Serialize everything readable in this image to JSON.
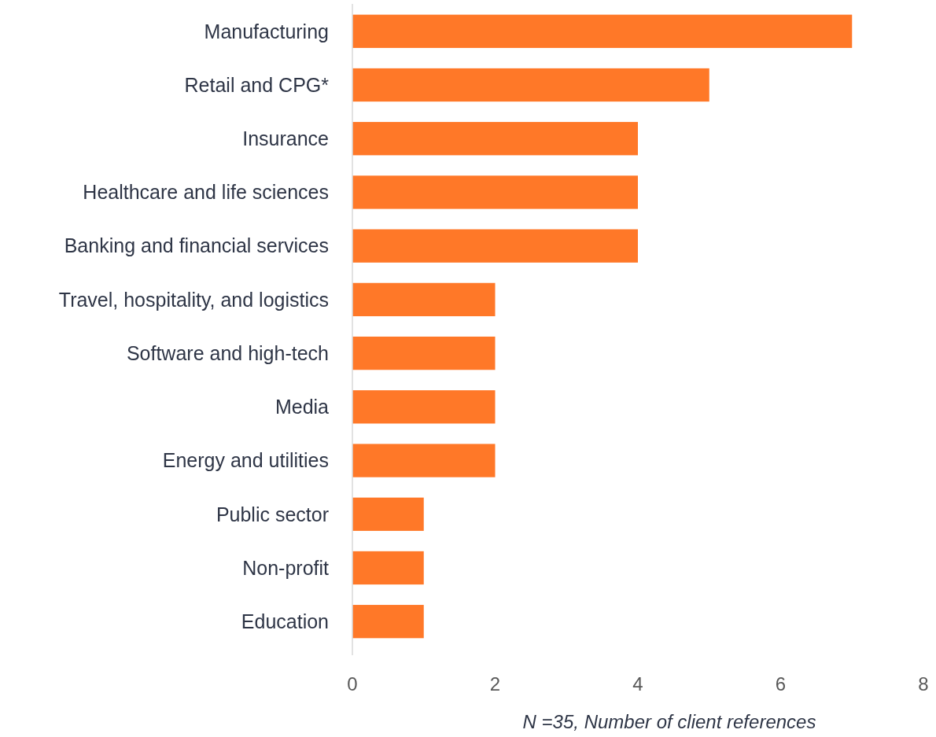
{
  "chart_data": {
    "type": "bar",
    "orientation": "horizontal",
    "xlabel": "N =35, Number of client references",
    "categories": [
      "Manufacturing",
      "Retail and CPG*",
      "Insurance",
      "Healthcare and life sciences",
      "Banking and financial services",
      "Travel, hospitality, and logistics",
      "Software and high-tech",
      "Media",
      "Energy and utilities",
      "Public sector",
      "Non-profit",
      "Education"
    ],
    "values": [
      7,
      5,
      4,
      4,
      4,
      2,
      2,
      2,
      2,
      1,
      1,
      1
    ],
    "color": "#ff7828",
    "xlim": [
      0,
      8
    ],
    "xticks": [
      0,
      2,
      4,
      6,
      8
    ],
    "grid": false
  }
}
